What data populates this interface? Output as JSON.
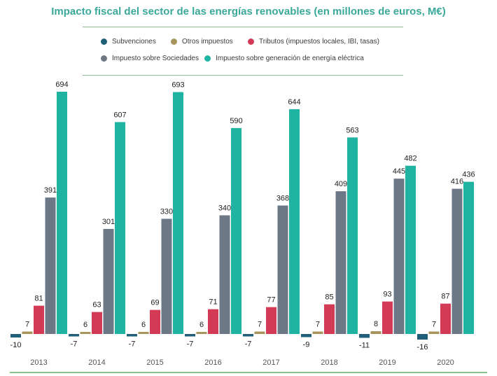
{
  "chart_data": {
    "type": "bar",
    "title": "Impacto fiscal del sector de las energías renovables (en millones de euros, M€)",
    "categories": [
      "2013",
      "2014",
      "2015",
      "2016",
      "2017",
      "2018",
      "2019",
      "2020"
    ],
    "series": [
      {
        "name": "Subvenciones",
        "color": "#1f5f77",
        "values": [
          -10,
          -7,
          -7,
          -7,
          -7,
          -9,
          -11,
          -16
        ]
      },
      {
        "name": "Otros impuestos",
        "color": "#a8955c",
        "values": [
          7,
          6,
          6,
          6,
          7,
          7,
          8,
          7
        ]
      },
      {
        "name": "Tributos (impuestos locales, IBI, tasas)",
        "color": "#d23a56",
        "values": [
          81,
          63,
          69,
          71,
          77,
          85,
          93,
          87
        ]
      },
      {
        "name": "Impuesto sobre Sociedades",
        "color": "#6d7887",
        "values": [
          391,
          301,
          330,
          340,
          368,
          409,
          445,
          416
        ]
      },
      {
        "name": "Impuesto sobre generación de energía eléctrica",
        "color": "#1fb3a1",
        "values": [
          694,
          607,
          693,
          590,
          644,
          563,
          482,
          436
        ]
      }
    ],
    "ylim": [
      -20,
      720
    ],
    "grid": false,
    "legend_position": "top"
  },
  "colors": {
    "title": "#3aa99a",
    "rule": "#8cc08a",
    "label": "#222222",
    "tick": "#555555"
  }
}
